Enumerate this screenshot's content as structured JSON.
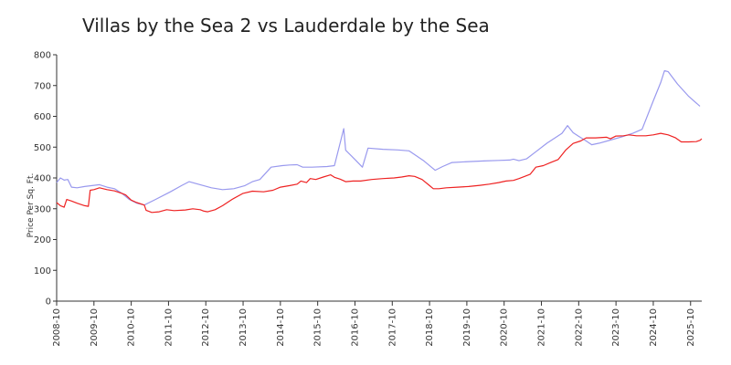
{
  "chart_data": {
    "type": "line",
    "title": "Villas by the Sea 2 vs Lauderdale by the Sea",
    "xlabel": "",
    "ylabel": "Price Per Sq. Ft.",
    "xlim": [
      2008.75,
      2026.05
    ],
    "ylim": [
      0,
      800
    ],
    "yticks": [
      0,
      100,
      200,
      300,
      400,
      500,
      600,
      700,
      800
    ],
    "xticks": [
      {
        "label": "2008-10",
        "x": 2008.75
      },
      {
        "label": "2009-10",
        "x": 2009.75
      },
      {
        "label": "2010-10",
        "x": 2010.75
      },
      {
        "label": "2011-10",
        "x": 2011.75
      },
      {
        "label": "2012-10",
        "x": 2012.75
      },
      {
        "label": "2013-10",
        "x": 2013.75
      },
      {
        "label": "2014-10",
        "x": 2014.75
      },
      {
        "label": "2015-10",
        "x": 2015.75
      },
      {
        "label": "2016-10",
        "x": 2016.75
      },
      {
        "label": "2017-10",
        "x": 2017.75
      },
      {
        "label": "2018-10",
        "x": 2018.75
      },
      {
        "label": "2019-10",
        "x": 2019.75
      },
      {
        "label": "2020-10",
        "x": 2020.75
      },
      {
        "label": "2021-10",
        "x": 2021.75
      },
      {
        "label": "2022-10",
        "x": 2022.75
      },
      {
        "label": "2023-10",
        "x": 2023.75
      },
      {
        "label": "2024-10",
        "x": 2024.75
      },
      {
        "label": "2025-10",
        "x": 2025.75
      }
    ],
    "grid": false,
    "legend": "none",
    "series": [
      {
        "name": "Villas by the Sea 2",
        "color": "#9999ee",
        "points": [
          [
            2008.75,
            385
          ],
          [
            2008.85,
            400
          ],
          [
            2008.95,
            393
          ],
          [
            2009.05,
            395
          ],
          [
            2009.15,
            370
          ],
          [
            2009.3,
            368
          ],
          [
            2009.5,
            372
          ],
          [
            2009.7,
            375
          ],
          [
            2009.9,
            378
          ],
          [
            2010.1,
            370
          ],
          [
            2010.3,
            365
          ],
          [
            2010.5,
            350
          ],
          [
            2010.7,
            330
          ],
          [
            2010.9,
            318
          ],
          [
            2011.1,
            312
          ],
          [
            2011.4,
            330
          ],
          [
            2011.8,
            355
          ],
          [
            2012.1,
            375
          ],
          [
            2012.3,
            388
          ],
          [
            2012.6,
            378
          ],
          [
            2012.9,
            368
          ],
          [
            2013.2,
            362
          ],
          [
            2013.5,
            365
          ],
          [
            2013.8,
            375
          ],
          [
            2014.0,
            388
          ],
          [
            2014.2,
            395
          ],
          [
            2014.5,
            435
          ],
          [
            2014.8,
            440
          ],
          [
            2015.0,
            442
          ],
          [
            2015.2,
            443
          ],
          [
            2015.35,
            435
          ],
          [
            2015.6,
            435
          ],
          [
            2016.0,
            437
          ],
          [
            2016.2,
            440
          ],
          [
            2016.45,
            560
          ],
          [
            2016.5,
            490
          ],
          [
            2016.75,
            460
          ],
          [
            2016.95,
            435
          ],
          [
            2017.1,
            497
          ],
          [
            2017.5,
            493
          ],
          [
            2017.9,
            491
          ],
          [
            2018.2,
            488
          ],
          [
            2018.6,
            455
          ],
          [
            2018.9,
            425
          ],
          [
            2019.1,
            437
          ],
          [
            2019.35,
            450
          ],
          [
            2019.8,
            453
          ],
          [
            2020.2,
            455
          ],
          [
            2020.6,
            457
          ],
          [
            2020.9,
            458
          ],
          [
            2021.0,
            461
          ],
          [
            2021.15,
            456
          ],
          [
            2021.35,
            462
          ],
          [
            2021.6,
            485
          ],
          [
            2021.9,
            513
          ],
          [
            2022.3,
            545
          ],
          [
            2022.45,
            570
          ],
          [
            2022.6,
            547
          ],
          [
            2022.75,
            535
          ],
          [
            2022.95,
            520
          ],
          [
            2023.1,
            508
          ],
          [
            2023.3,
            513
          ],
          [
            2023.6,
            523
          ],
          [
            2023.9,
            533
          ],
          [
            2024.2,
            545
          ],
          [
            2024.45,
            558
          ],
          [
            2024.75,
            650
          ],
          [
            2024.95,
            710
          ],
          [
            2025.05,
            748
          ],
          [
            2025.15,
            745
          ],
          [
            2025.4,
            705
          ],
          [
            2025.7,
            665
          ],
          [
            2026.0,
            633
          ]
        ]
      },
      {
        "name": "Lauderdale by the Sea",
        "color": "#ee2222",
        "points": [
          [
            2008.75,
            320
          ],
          [
            2008.85,
            310
          ],
          [
            2008.95,
            305
          ],
          [
            2009.02,
            330
          ],
          [
            2009.15,
            325
          ],
          [
            2009.3,
            318
          ],
          [
            2009.5,
            310
          ],
          [
            2009.6,
            308
          ],
          [
            2009.65,
            360
          ],
          [
            2009.75,
            362
          ],
          [
            2009.9,
            368
          ],
          [
            2010.1,
            362
          ],
          [
            2010.3,
            358
          ],
          [
            2010.5,
            350
          ],
          [
            2010.6,
            345
          ],
          [
            2010.75,
            328
          ],
          [
            2010.9,
            320
          ],
          [
            2011.1,
            312
          ],
          [
            2011.15,
            295
          ],
          [
            2011.3,
            288
          ],
          [
            2011.5,
            290
          ],
          [
            2011.7,
            297
          ],
          [
            2011.9,
            294
          ],
          [
            2012.2,
            296
          ],
          [
            2012.4,
            300
          ],
          [
            2012.6,
            297
          ],
          [
            2012.7,
            292
          ],
          [
            2012.8,
            290
          ],
          [
            2013.0,
            297
          ],
          [
            2013.2,
            310
          ],
          [
            2013.45,
            330
          ],
          [
            2013.75,
            350
          ],
          [
            2014.0,
            357
          ],
          [
            2014.3,
            355
          ],
          [
            2014.55,
            360
          ],
          [
            2014.75,
            370
          ],
          [
            2015.0,
            375
          ],
          [
            2015.2,
            380
          ],
          [
            2015.3,
            390
          ],
          [
            2015.45,
            385
          ],
          [
            2015.55,
            398
          ],
          [
            2015.7,
            395
          ],
          [
            2015.9,
            403
          ],
          [
            2016.1,
            410
          ],
          [
            2016.2,
            402
          ],
          [
            2016.35,
            396
          ],
          [
            2016.5,
            388
          ],
          [
            2016.7,
            390
          ],
          [
            2016.9,
            390
          ],
          [
            2017.2,
            395
          ],
          [
            2017.5,
            398
          ],
          [
            2017.8,
            400
          ],
          [
            2018.0,
            403
          ],
          [
            2018.2,
            407
          ],
          [
            2018.35,
            405
          ],
          [
            2018.55,
            395
          ],
          [
            2018.75,
            375
          ],
          [
            2018.85,
            365
          ],
          [
            2019.0,
            365
          ],
          [
            2019.2,
            368
          ],
          [
            2019.5,
            370
          ],
          [
            2019.8,
            372
          ],
          [
            2020.1,
            376
          ],
          [
            2020.35,
            380
          ],
          [
            2020.6,
            385
          ],
          [
            2020.8,
            390
          ],
          [
            2021.0,
            392
          ],
          [
            2021.15,
            398
          ],
          [
            2021.3,
            405
          ],
          [
            2021.45,
            412
          ],
          [
            2021.6,
            435
          ],
          [
            2021.8,
            440
          ],
          [
            2022.0,
            450
          ],
          [
            2022.2,
            460
          ],
          [
            2022.4,
            490
          ],
          [
            2022.6,
            512
          ],
          [
            2022.8,
            520
          ],
          [
            2022.95,
            530
          ],
          [
            2023.2,
            530
          ],
          [
            2023.5,
            532
          ],
          [
            2023.6,
            527
          ],
          [
            2023.75,
            536
          ],
          [
            2023.95,
            537
          ],
          [
            2024.1,
            540
          ],
          [
            2024.3,
            537
          ],
          [
            2024.55,
            537
          ],
          [
            2024.75,
            540
          ],
          [
            2024.95,
            545
          ],
          [
            2025.15,
            540
          ],
          [
            2025.35,
            530
          ],
          [
            2025.5,
            517
          ],
          [
            2025.7,
            517
          ],
          [
            2025.9,
            518
          ],
          [
            2026.0,
            522
          ],
          [
            2026.05,
            527
          ]
        ]
      }
    ]
  }
}
